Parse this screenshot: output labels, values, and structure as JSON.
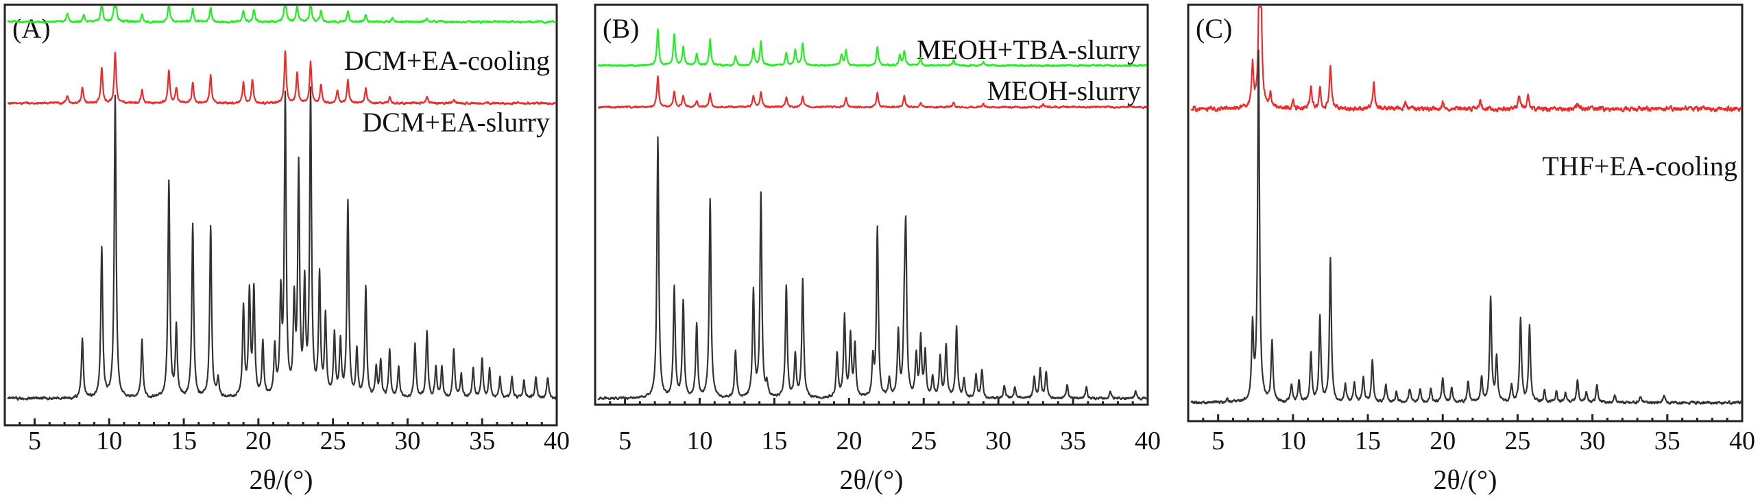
{
  "figure": {
    "colors": {
      "green": "#22ee22",
      "red": "#ee2b2b",
      "black": "#333333",
      "axis": "#222222"
    }
  },
  "chart_data": [
    {
      "type": "line",
      "panel_label": "(A)",
      "xlabel": "2θ/(°)",
      "xlim": [
        3,
        40
      ],
      "xticks": [
        5,
        10,
        15,
        20,
        25,
        30,
        35,
        40
      ],
      "yaxis": "unlabeled, offset stacked patterns (intensity, arbitrary units)",
      "series": [
        {
          "name": "DCM+EA-cooling",
          "color": "#22ee22",
          "offset": 1.25,
          "scale": 0.12,
          "noise": 0.006,
          "peaks": [
            [
              7.2,
              0.25
            ],
            [
              8.3,
              0.2
            ],
            [
              9.5,
              0.6
            ],
            [
              10.4,
              1.0
            ],
            [
              12.2,
              0.2
            ],
            [
              14.0,
              0.55
            ],
            [
              15.6,
              0.35
            ],
            [
              16.8,
              0.4
            ],
            [
              19.0,
              0.3
            ],
            [
              19.7,
              0.35
            ],
            [
              21.8,
              0.8
            ],
            [
              22.6,
              0.45
            ],
            [
              23.5,
              0.6
            ],
            [
              24.2,
              0.3
            ],
            [
              26.0,
              0.3
            ],
            [
              27.2,
              0.2
            ],
            [
              29,
              0.12
            ],
            [
              31.3,
              0.1
            ]
          ]
        },
        {
          "name": "DCM+EA-slurry",
          "color": "#ee2b2b",
          "offset": 0.98,
          "scale": 0.17,
          "noise": 0.006,
          "peaks": [
            [
              7.2,
              0.15
            ],
            [
              8.2,
              0.3
            ],
            [
              9.5,
              0.7
            ],
            [
              10.4,
              1.0
            ],
            [
              12.2,
              0.25
            ],
            [
              14.0,
              0.65
            ],
            [
              14.5,
              0.3
            ],
            [
              15.6,
              0.4
            ],
            [
              16.8,
              0.55
            ],
            [
              19.0,
              0.4
            ],
            [
              19.6,
              0.45
            ],
            [
              21.8,
              1.0
            ],
            [
              22.6,
              0.6
            ],
            [
              23.5,
              0.8
            ],
            [
              24.2,
              0.35
            ],
            [
              25.3,
              0.25
            ],
            [
              26.0,
              0.45
            ],
            [
              27.2,
              0.3
            ],
            [
              28.8,
              0.12
            ],
            [
              31.3,
              0.12
            ],
            [
              33.1,
              0.08
            ]
          ]
        },
        {
          "name": "",
          "color": "#333333",
          "offset": 0.0,
          "scale": 1.0,
          "noise": 0.008,
          "peaks": [
            [
              8.2,
              0.2
            ],
            [
              9.5,
              0.5
            ],
            [
              10.4,
              1.0
            ],
            [
              12.2,
              0.19
            ],
            [
              14.0,
              0.72
            ],
            [
              14.5,
              0.23
            ],
            [
              15.6,
              0.57
            ],
            [
              16.8,
              0.57
            ],
            [
              17.3,
              0.06
            ],
            [
              19.0,
              0.3
            ],
            [
              19.4,
              0.34
            ],
            [
              19.7,
              0.35
            ],
            [
              20.3,
              0.18
            ],
            [
              21.1,
              0.16
            ],
            [
              21.5,
              0.32
            ],
            [
              21.8,
              0.98
            ],
            [
              22.4,
              0.3
            ],
            [
              22.7,
              0.75
            ],
            [
              23.1,
              0.35
            ],
            [
              23.5,
              1.0
            ],
            [
              24.1,
              0.4
            ],
            [
              24.5,
              0.26
            ],
            [
              25.1,
              0.2
            ],
            [
              25.5,
              0.18
            ],
            [
              26.0,
              0.65
            ],
            [
              26.6,
              0.15
            ],
            [
              27.2,
              0.37
            ],
            [
              27.9,
              0.1
            ],
            [
              28.2,
              0.12
            ],
            [
              28.8,
              0.16
            ],
            [
              29.4,
              0.1
            ],
            [
              30.5,
              0.18
            ],
            [
              31.3,
              0.22
            ],
            [
              31.9,
              0.1
            ],
            [
              32.3,
              0.1
            ],
            [
              33.1,
              0.16
            ],
            [
              33.6,
              0.08
            ],
            [
              34.4,
              0.1
            ],
            [
              35.0,
              0.13
            ],
            [
              35.5,
              0.1
            ],
            [
              36.2,
              0.07
            ],
            [
              37.0,
              0.07
            ],
            [
              37.8,
              0.06
            ],
            [
              38.6,
              0.07
            ],
            [
              39.4,
              0.07
            ]
          ]
        }
      ]
    },
    {
      "type": "line",
      "panel_label": "(B)",
      "xlabel": "2θ/(°)",
      "xlim": [
        3,
        40
      ],
      "xticks": [
        5,
        10,
        15,
        20,
        25,
        30,
        35,
        40
      ],
      "yaxis": "unlabeled, offset stacked patterns (intensity, arbitrary units)",
      "series": [
        {
          "name": "MEOH+TBA-slurry",
          "color": "#22ee22",
          "offset": 1.28,
          "scale": 0.14,
          "noise": 0.006,
          "peaks": [
            [
              7.2,
              1.0
            ],
            [
              8.3,
              0.85
            ],
            [
              8.9,
              0.5
            ],
            [
              9.8,
              0.3
            ],
            [
              10.7,
              0.7
            ],
            [
              12.4,
              0.25
            ],
            [
              13.6,
              0.45
            ],
            [
              14.1,
              0.65
            ],
            [
              15.8,
              0.35
            ],
            [
              16.4,
              0.45
            ],
            [
              16.9,
              0.6
            ],
            [
              19.5,
              0.3
            ],
            [
              19.8,
              0.4
            ],
            [
              21.9,
              0.5
            ],
            [
              23.4,
              0.3
            ],
            [
              23.7,
              0.4
            ],
            [
              24.8,
              0.2
            ],
            [
              27,
              0.15
            ],
            [
              29,
              0.1
            ]
          ]
        },
        {
          "name": "MEOH-slurry",
          "color": "#ee2b2b",
          "offset": 1.12,
          "scale": 0.12,
          "noise": 0.006,
          "peaks": [
            [
              7.2,
              1.0
            ],
            [
              8.3,
              0.5
            ],
            [
              8.9,
              0.35
            ],
            [
              9.8,
              0.2
            ],
            [
              10.7,
              0.45
            ],
            [
              13.6,
              0.35
            ],
            [
              14.1,
              0.5
            ],
            [
              15.8,
              0.3
            ],
            [
              16.9,
              0.35
            ],
            [
              19.8,
              0.3
            ],
            [
              21.9,
              0.45
            ],
            [
              23.7,
              0.35
            ],
            [
              24.8,
              0.15
            ],
            [
              27,
              0.12
            ],
            [
              29,
              0.1
            ],
            [
              33,
              0.08
            ]
          ]
        },
        {
          "name": "",
          "color": "#333333",
          "offset": 0.0,
          "scale": 1.0,
          "noise": 0.008,
          "peaks": [
            [
              7.2,
              1.0
            ],
            [
              8.3,
              0.42
            ],
            [
              8.9,
              0.37
            ],
            [
              9.8,
              0.28
            ],
            [
              10.7,
              0.76
            ],
            [
              12.4,
              0.18
            ],
            [
              13.6,
              0.41
            ],
            [
              14.1,
              0.78
            ],
            [
              14.5,
              0.05
            ],
            [
              15.8,
              0.43
            ],
            [
              16.4,
              0.16
            ],
            [
              16.9,
              0.45
            ],
            [
              19.2,
              0.17
            ],
            [
              19.7,
              0.31
            ],
            [
              20.1,
              0.24
            ],
            [
              20.4,
              0.2
            ],
            [
              21.6,
              0.14
            ],
            [
              21.9,
              0.65
            ],
            [
              22.7,
              0.07
            ],
            [
              23.3,
              0.25
            ],
            [
              23.7,
              0.24
            ],
            [
              23.8,
              0.6
            ],
            [
              24.5,
              0.16
            ],
            [
              24.8,
              0.22
            ],
            [
              25.1,
              0.17
            ],
            [
              25.6,
              0.08
            ],
            [
              26.1,
              0.16
            ],
            [
              26.5,
              0.2
            ],
            [
              27.2,
              0.27
            ],
            [
              27.7,
              0.07
            ],
            [
              28.5,
              0.09
            ],
            [
              28.9,
              0.11
            ],
            [
              30.4,
              0.05
            ],
            [
              31.1,
              0.04
            ],
            [
              32.4,
              0.08
            ],
            [
              32.8,
              0.11
            ],
            [
              33.2,
              0.1
            ],
            [
              34.6,
              0.05
            ],
            [
              35.9,
              0.04
            ],
            [
              37.5,
              0.03
            ],
            [
              39.2,
              0.03
            ]
          ]
        }
      ]
    },
    {
      "type": "line",
      "panel_label": "(C)",
      "xlabel": "2θ/(°)",
      "xlim": [
        3,
        40
      ],
      "xticks": [
        5,
        10,
        15,
        20,
        25,
        30,
        35,
        40
      ],
      "yaxis": "unlabeled, offset stacked patterns (intensity, arbitrary units)",
      "series": [
        {
          "name": "THF+EA-cooling",
          "color": "#ee2b2b",
          "offset": 0.74,
          "scale": 0.7,
          "noise": 0.01,
          "peaks": [
            [
              7.3,
              0.15
            ],
            [
              7.8,
              1.0
            ],
            [
              8.5,
              0.05
            ],
            [
              10.0,
              0.03
            ],
            [
              11.2,
              0.08
            ],
            [
              11.8,
              0.07
            ],
            [
              12.5,
              0.15
            ],
            [
              15.4,
              0.09
            ],
            [
              17.5,
              0.02
            ],
            [
              20.0,
              0.02
            ],
            [
              22.5,
              0.03
            ],
            [
              25.1,
              0.05
            ],
            [
              25.7,
              0.05
            ],
            [
              29,
              0.02
            ]
          ]
        },
        {
          "name": "",
          "color": "#333333",
          "offset": 0.0,
          "scale": 0.88,
          "noise": 0.006,
          "peaks": [
            [
              5.6,
              0.01
            ],
            [
              7.3,
              0.21
            ],
            [
              7.7,
              1.0
            ],
            [
              8.6,
              0.17
            ],
            [
              9.9,
              0.05
            ],
            [
              10.4,
              0.06
            ],
            [
              11.2,
              0.14
            ],
            [
              11.8,
              0.24
            ],
            [
              12.5,
              0.41
            ],
            [
              13.5,
              0.05
            ],
            [
              14.1,
              0.06
            ],
            [
              14.7,
              0.07
            ],
            [
              15.3,
              0.12
            ],
            [
              16.2,
              0.05
            ],
            [
              16.9,
              0.03
            ],
            [
              17.8,
              0.04
            ],
            [
              18.5,
              0.04
            ],
            [
              19.2,
              0.04
            ],
            [
              20.0,
              0.07
            ],
            [
              20.6,
              0.04
            ],
            [
              21.7,
              0.06
            ],
            [
              22.6,
              0.07
            ],
            [
              23.2,
              0.3
            ],
            [
              23.6,
              0.13
            ],
            [
              24.6,
              0.05
            ],
            [
              25.2,
              0.24
            ],
            [
              25.8,
              0.22
            ],
            [
              26.8,
              0.03
            ],
            [
              27.6,
              0.03
            ],
            [
              28.2,
              0.03
            ],
            [
              29.0,
              0.06
            ],
            [
              29.6,
              0.03
            ],
            [
              30.3,
              0.05
            ],
            [
              31.5,
              0.02
            ],
            [
              33.2,
              0.02
            ],
            [
              34.8,
              0.02
            ]
          ]
        }
      ]
    }
  ]
}
